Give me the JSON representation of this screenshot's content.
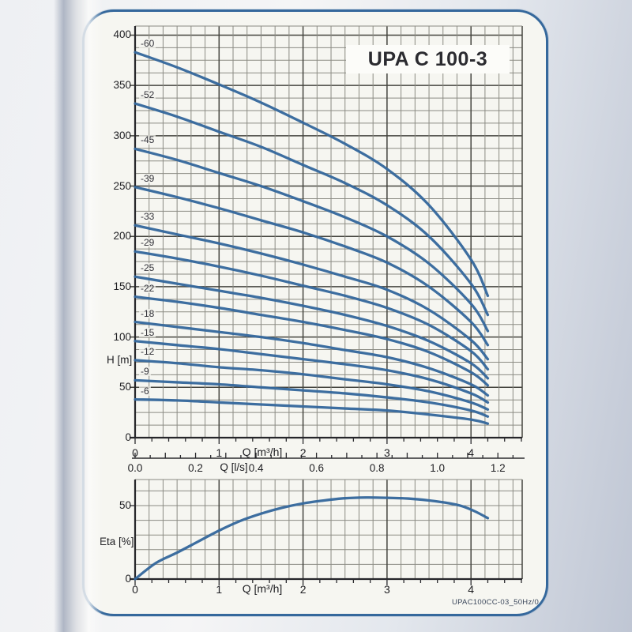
{
  "page": {
    "footer": "UPAC100CC-03_50Hz/0",
    "frame_color": "#35689c",
    "curve_color": "#35689c",
    "paper_color": "#f6f6f1"
  },
  "chart_data": [
    {
      "type": "line",
      "title": "UPA C 100-3",
      "xlabel": "Q [m³/h]",
      "x2label": "Q [l/s]",
      "ylabel": "H [m]",
      "xlim": [
        0,
        4.61
      ],
      "x2lim": [
        0,
        1.28
      ],
      "ylim": [
        0,
        409
      ],
      "grid": "on",
      "legend": "curve labels at left ends",
      "x_ticks": [
        0,
        1,
        2,
        3,
        4
      ],
      "x2_ticks": [
        "0.0",
        "0.2",
        "0.4",
        "0.6",
        "0.8",
        "1.0",
        "1.2"
      ],
      "y_ticks": [
        0,
        50,
        100,
        150,
        200,
        250,
        300,
        350,
        400
      ],
      "q": [
        0,
        0.5,
        1,
        1.5,
        2,
        2.5,
        3,
        3.5,
        4,
        4.2
      ],
      "series": [
        {
          "name": "-60",
          "values": [
            383,
            368,
            351,
            333,
            313,
            292,
            267,
            231,
            177,
            141
          ]
        },
        {
          "name": "-52",
          "values": [
            332,
            319,
            304,
            289,
            271,
            253,
            231,
            200,
            153,
            122
          ]
        },
        {
          "name": "-45",
          "values": [
            287,
            276,
            263,
            250,
            235,
            219,
            200,
            173,
            133,
            106
          ]
        },
        {
          "name": "-39",
          "values": [
            249,
            239,
            228,
            216,
            204,
            190,
            174,
            150,
            115,
            92
          ]
        },
        {
          "name": "-33",
          "values": [
            211,
            202,
            193,
            183,
            172,
            160,
            147,
            127,
            97,
            78
          ]
        },
        {
          "name": "-29",
          "values": [
            185,
            178,
            170,
            161,
            151,
            141,
            129,
            112,
            86,
            68
          ]
        },
        {
          "name": "-25",
          "values": [
            160,
            153,
            146,
            139,
            131,
            122,
            111,
            96,
            74,
            59
          ]
        },
        {
          "name": "-22",
          "values": [
            140,
            135,
            129,
            122,
            115,
            107,
            98,
            85,
            65,
            52
          ]
        },
        {
          "name": "-18",
          "values": [
            115,
            110,
            105,
            100,
            94,
            87,
            80,
            69,
            53,
            42
          ]
        },
        {
          "name": "-15",
          "values": [
            96,
            92,
            88,
            83,
            78,
            73,
            67,
            58,
            44,
            35
          ]
        },
        {
          "name": "-12",
          "values": [
            77,
            74,
            70,
            67,
            63,
            58,
            53,
            46,
            35,
            28
          ]
        },
        {
          "name": "-9",
          "values": [
            57,
            55,
            53,
            50,
            47,
            44,
            40,
            35,
            27,
            21
          ]
        },
        {
          "name": "-6",
          "values": [
            38,
            37,
            35,
            33,
            31,
            29,
            27,
            23,
            18,
            14
          ]
        }
      ]
    },
    {
      "type": "line",
      "xlabel": "Q [m³/h]",
      "ylabel": "Eta [%]",
      "xlim": [
        0,
        4.61
      ],
      "ylim": [
        0,
        68
      ],
      "grid": "on",
      "x_ticks": [
        0,
        1,
        2,
        3,
        4
      ],
      "y_ticks": [
        0,
        50
      ],
      "x": [
        0,
        0.25,
        0.5,
        0.75,
        1,
        1.25,
        1.5,
        1.75,
        2,
        2.25,
        2.5,
        2.75,
        3,
        3.25,
        3.5,
        3.75,
        3.9,
        4.05,
        4.2
      ],
      "values": [
        0,
        11,
        18,
        25.5,
        33,
        39.5,
        44.5,
        48.5,
        51.5,
        53.5,
        55,
        55.5,
        55.3,
        54.8,
        53.5,
        51.5,
        49.5,
        46,
        41.5
      ]
    }
  ]
}
